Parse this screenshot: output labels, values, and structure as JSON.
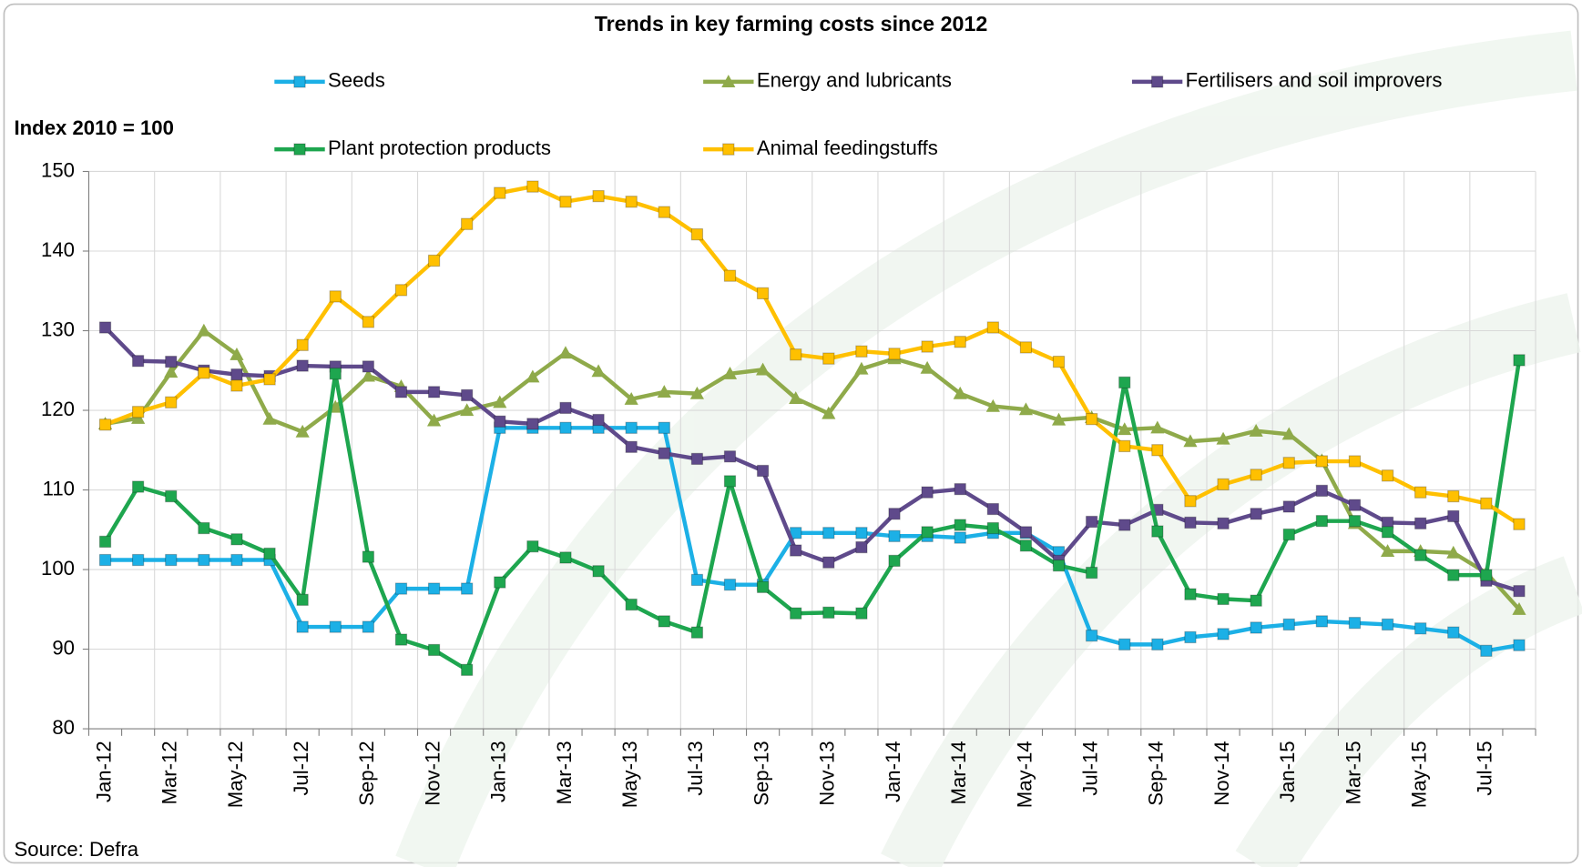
{
  "chart_data": {
    "type": "line",
    "title": "Trends in key farming costs since 2012",
    "y_label": "Index 2010 = 100",
    "source": "Source: Defra",
    "categories": [
      "Jan-12",
      null,
      "Mar-12",
      null,
      "May-12",
      null,
      "Jul-12",
      null,
      "Sep-12",
      null,
      "Nov-12",
      null,
      "Jan-13",
      null,
      "Mar-13",
      null,
      "May-13",
      null,
      "Jul-13",
      null,
      "Sep-13",
      null,
      "Nov-13",
      null,
      "Jan-14",
      null,
      "Mar-14",
      null,
      "May-14",
      null,
      "Jul-14",
      null,
      "Sep-14",
      null,
      "Nov-14",
      null,
      "Jan-15",
      null,
      "Mar-15",
      null,
      "May-15",
      null,
      "Jul-15",
      null
    ],
    "ylim": [
      80,
      150
    ],
    "yticks": [
      80,
      90,
      100,
      110,
      120,
      130,
      140,
      150
    ],
    "grid": true,
    "legend": "top",
    "series": [
      {
        "name": "Seeds",
        "color": "#1cb0e6",
        "marker": "square",
        "values": [
          101.2,
          101.2,
          101.2,
          101.2,
          101.2,
          101.2,
          92.8,
          92.8,
          92.8,
          97.6,
          97.6,
          97.6,
          117.8,
          117.8,
          117.8,
          117.8,
          117.8,
          117.8,
          98.7,
          98.1,
          98.1,
          104.6,
          104.6,
          104.6,
          104.2,
          104.2,
          104.0,
          104.6,
          104.6,
          102.2,
          91.7,
          90.6,
          90.6,
          91.5,
          91.9,
          92.7,
          93.1,
          93.5,
          93.3,
          93.1,
          92.6,
          92.1,
          89.8,
          90.5
        ]
      },
      {
        "name": "Energy and lubricants",
        "color": "#8faa4a",
        "marker": "triangle",
        "values": [
          118.3,
          119.0,
          124.8,
          130.0,
          127.0,
          118.9,
          117.3,
          120.4,
          124.3,
          123.0,
          118.7,
          120.0,
          121.0,
          124.2,
          127.2,
          124.9,
          121.4,
          122.3,
          122.1,
          124.6,
          125.1,
          121.5,
          119.6,
          125.2,
          126.5,
          125.3,
          122.1,
          120.5,
          120.1,
          118.8,
          119.1,
          117.6,
          117.8,
          116.1,
          116.4,
          117.4,
          117.0,
          113.7,
          105.8,
          102.3,
          102.3,
          102.1,
          99.6,
          95.0
        ]
      },
      {
        "name": "Fertilisers and soil improvers",
        "color": "#5f4a8b",
        "marker": "square",
        "values": [
          130.4,
          126.2,
          126.1,
          125.0,
          124.5,
          124.3,
          125.6,
          125.5,
          125.5,
          122.3,
          122.3,
          121.9,
          118.6,
          118.3,
          120.3,
          118.8,
          115.4,
          114.6,
          113.9,
          114.2,
          112.4,
          102.4,
          100.9,
          102.8,
          107.0,
          109.7,
          110.1,
          107.6,
          104.7,
          101.1,
          106.0,
          105.6,
          107.5,
          105.9,
          105.8,
          107.0,
          107.9,
          109.9,
          108.1,
          105.9,
          105.8,
          106.7,
          98.6,
          97.3
        ]
      },
      {
        "name": "Plant protection products",
        "color": "#1ea64f",
        "marker": "square",
        "values": [
          103.5,
          110.4,
          109.2,
          105.2,
          103.8,
          102.0,
          96.2,
          124.6,
          101.6,
          91.2,
          89.9,
          87.4,
          98.4,
          102.9,
          101.5,
          99.8,
          95.6,
          93.5,
          92.1,
          111.1,
          97.8,
          94.5,
          94.6,
          94.5,
          101.1,
          104.7,
          105.6,
          105.2,
          103.0,
          100.5,
          99.6,
          123.5,
          104.8,
          96.9,
          96.3,
          96.1,
          104.4,
          106.1,
          106.1,
          104.7,
          101.8,
          99.3,
          99.3,
          126.3
        ]
      },
      {
        "name": "Animal feedingstuffs",
        "color": "#ffc000",
        "marker": "square",
        "values": [
          118.2,
          119.8,
          121.0,
          124.7,
          123.1,
          123.9,
          128.2,
          134.3,
          131.1,
          135.1,
          138.8,
          143.4,
          147.3,
          148.1,
          146.2,
          146.9,
          146.2,
          144.9,
          142.1,
          136.9,
          134.7,
          127.0,
          126.5,
          127.4,
          127.1,
          128.0,
          128.6,
          130.4,
          127.9,
          126.1,
          118.9,
          115.5,
          115.0,
          108.6,
          110.7,
          111.9,
          113.4,
          113.6,
          113.6,
          111.8,
          109.7,
          109.2,
          108.3,
          105.7
        ]
      }
    ]
  }
}
